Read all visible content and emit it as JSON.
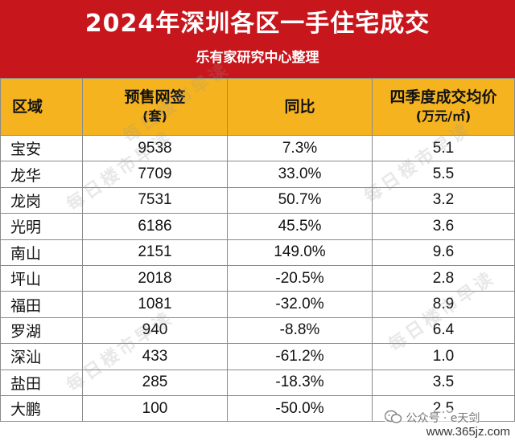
{
  "banner": {
    "title": "2024年深圳各区一手住宅成交",
    "subtitle": "乐有家研究中心整理"
  },
  "table": {
    "headers": {
      "district": "区域",
      "presale": "预售网签",
      "presale_unit": "(套)",
      "yoy": "同比",
      "price": "四季度成交均价",
      "price_unit": "(万元/㎡)"
    },
    "rows": [
      {
        "district": "宝安",
        "presale": "9538",
        "yoy": "7.3%",
        "price": "5.1"
      },
      {
        "district": "龙华",
        "presale": "7709",
        "yoy": "33.0%",
        "price": "5.5"
      },
      {
        "district": "龙岗",
        "presale": "7531",
        "yoy": "50.7%",
        "price": "3.2"
      },
      {
        "district": "光明",
        "presale": "6186",
        "yoy": "45.5%",
        "price": "3.6"
      },
      {
        "district": "南山",
        "presale": "2151",
        "yoy": "149.0%",
        "price": "9.6"
      },
      {
        "district": "坪山",
        "presale": "2018",
        "yoy": "-20.5%",
        "price": "2.8"
      },
      {
        "district": "福田",
        "presale": "1081",
        "yoy": "-32.0%",
        "price": "8.9"
      },
      {
        "district": "罗湖",
        "presale": "940",
        "yoy": "-8.8%",
        "price": "6.4"
      },
      {
        "district": "深汕",
        "presale": "433",
        "yoy": "-61.2%",
        "price": "1.0"
      },
      {
        "district": "盐田",
        "presale": "285",
        "yoy": "-18.3%",
        "price": "3.5"
      },
      {
        "district": "大鹏",
        "presale": "100",
        "yoy": "-50.0%",
        "price": "2.5"
      }
    ]
  },
  "watermark": {
    "text": "每日楼市早读",
    "footer": "公众号 · e天剑",
    "site": "www.365jz.com"
  },
  "colors": {
    "banner_bg": "#c8161d",
    "header_bg": "#f5b41f"
  }
}
